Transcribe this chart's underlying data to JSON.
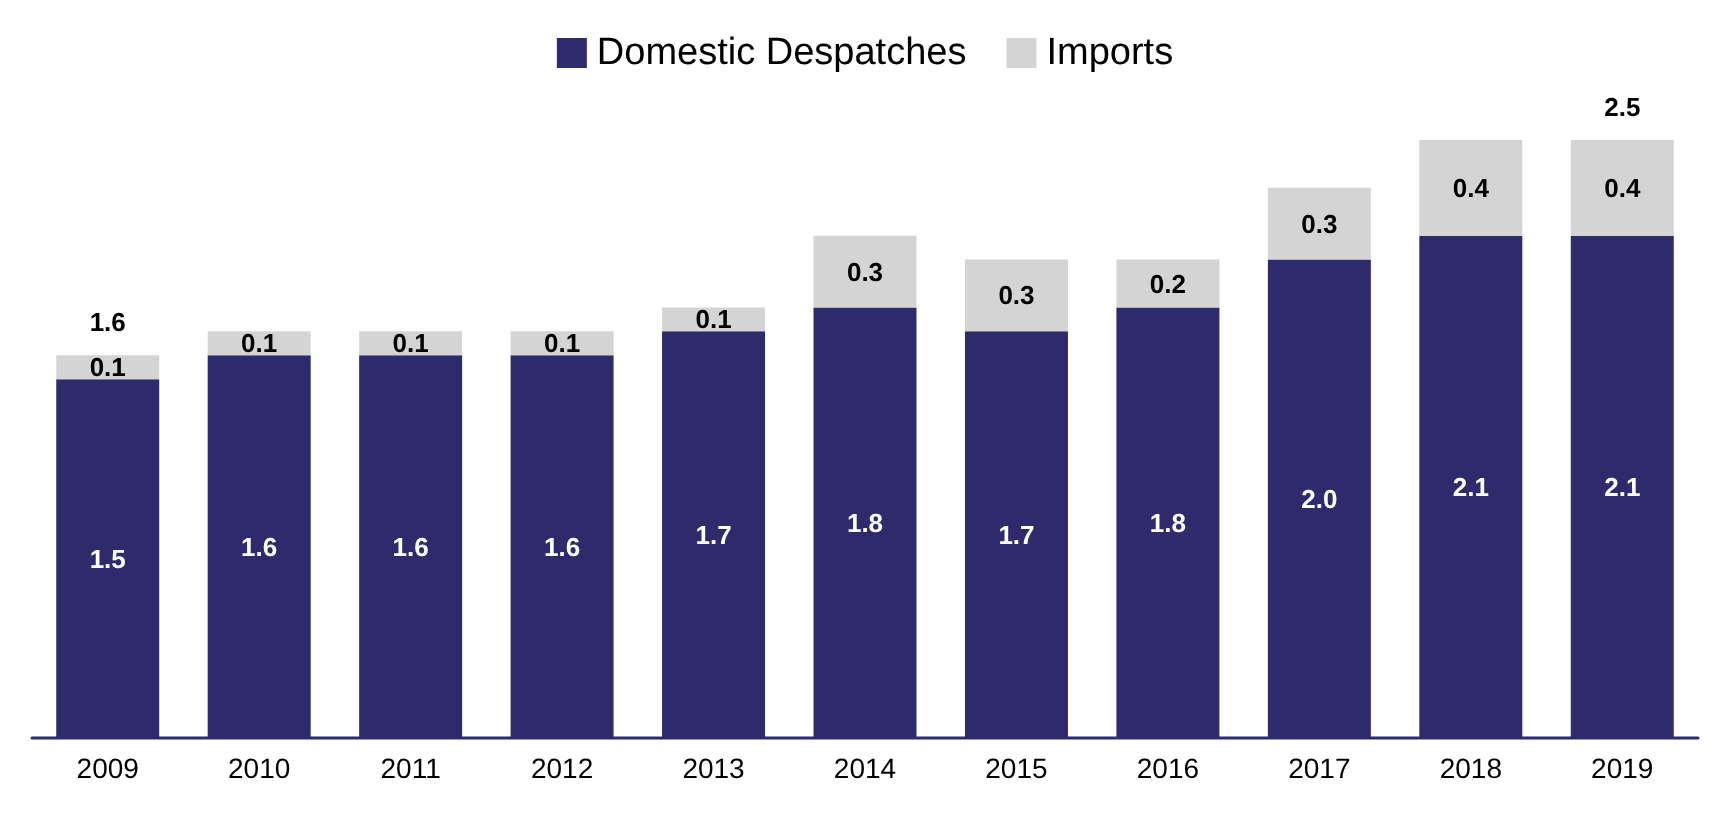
{
  "chart_data": {
    "type": "bar",
    "stacked": true,
    "legend": "top",
    "categories": [
      "2009",
      "2010",
      "2011",
      "2012",
      "2013",
      "2014",
      "2015",
      "2016",
      "2017",
      "2018",
      "2019"
    ],
    "series": [
      {
        "name": "Domestic Despatches",
        "color": "#2e2a6b",
        "values": [
          1.5,
          1.6,
          1.6,
          1.6,
          1.7,
          1.8,
          1.7,
          1.8,
          2.0,
          2.1,
          2.1
        ],
        "value_labels": [
          "1.5",
          "1.6",
          "1.6",
          "1.6",
          "1.7",
          "1.8",
          "1.7",
          "1.8",
          "2.0",
          "2.1",
          "2.1"
        ]
      },
      {
        "name": "Imports",
        "color": "#d4d4d4",
        "values": [
          0.1,
          0.1,
          0.1,
          0.1,
          0.1,
          0.3,
          0.3,
          0.2,
          0.3,
          0.4,
          0.4
        ],
        "value_labels": [
          "0.1",
          "0.1",
          "0.1",
          "0.1",
          "0.1",
          "0.3",
          "0.3",
          "0.2",
          "0.3",
          "0.4",
          "0.4"
        ]
      }
    ],
    "totals": [
      "1.6",
      null,
      null,
      null,
      null,
      null,
      null,
      null,
      null,
      null,
      "2.5"
    ]
  }
}
